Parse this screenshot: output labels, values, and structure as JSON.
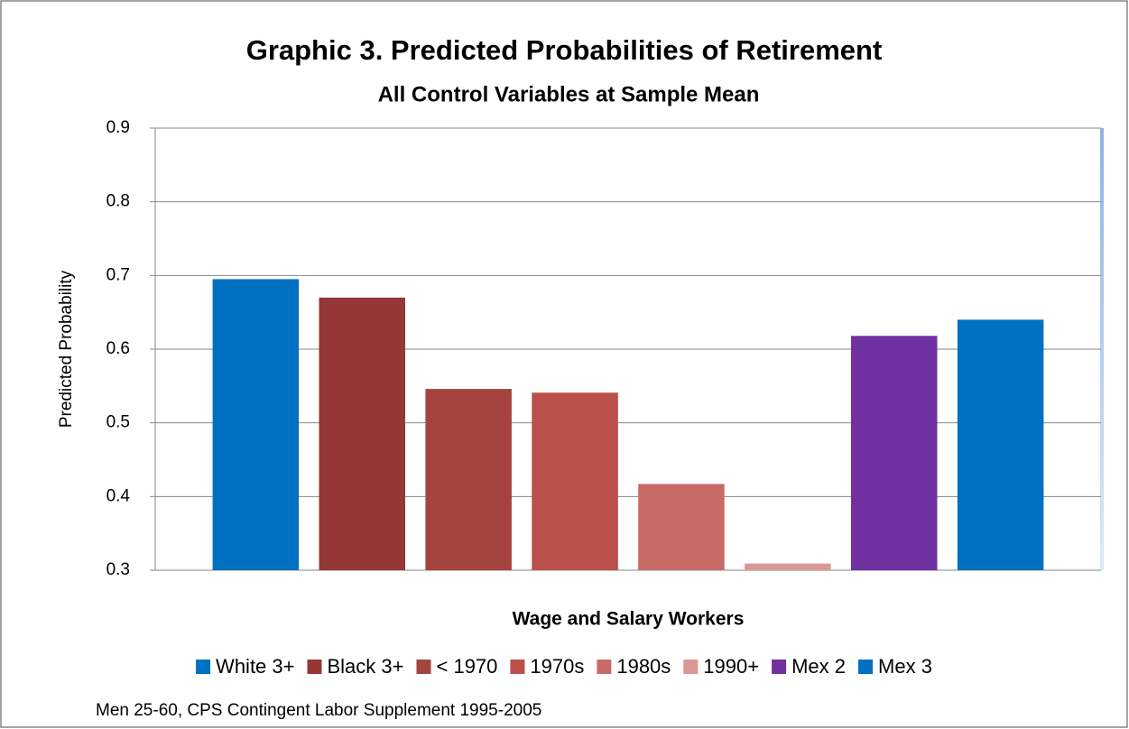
{
  "chart_data": {
    "type": "bar",
    "title": "Graphic 3. Predicted Probabilities of Retirement",
    "subtitle": "All Control Variables at Sample Mean",
    "y_label": "Predicted Probability",
    "categories": [
      "Wage and Salary Workers"
    ],
    "series": [
      {
        "name": "White 3+",
        "color": "#0070c0",
        "values": [
          0.695
        ]
      },
      {
        "name": "Black 3+",
        "color": "#953735",
        "values": [
          0.67
        ]
      },
      {
        "name": "< 1970",
        "color": "#a5443f",
        "values": [
          0.546
        ]
      },
      {
        "name": "1970s",
        "color": "#bb4f4a",
        "values": [
          0.541
        ]
      },
      {
        "name": "1980s",
        "color": "#c86b67",
        "values": [
          0.417
        ]
      },
      {
        "name": "1990+",
        "color": "#d99795",
        "values": [
          0.309
        ]
      },
      {
        "name": "Mex 2",
        "color": "#7030a0",
        "values": [
          0.618
        ]
      },
      {
        "name": "Mex 3",
        "color": "#0070c0",
        "values": [
          0.64
        ]
      }
    ],
    "ylim": [
      0.3,
      0.9
    ],
    "yticks": [
      0.3,
      0.4,
      0.5,
      0.6,
      0.7,
      0.8,
      0.9
    ],
    "grid": true,
    "legend": "bottom",
    "note": "Men 25-60, CPS Contingent Labor Supplement 1995-2005"
  }
}
